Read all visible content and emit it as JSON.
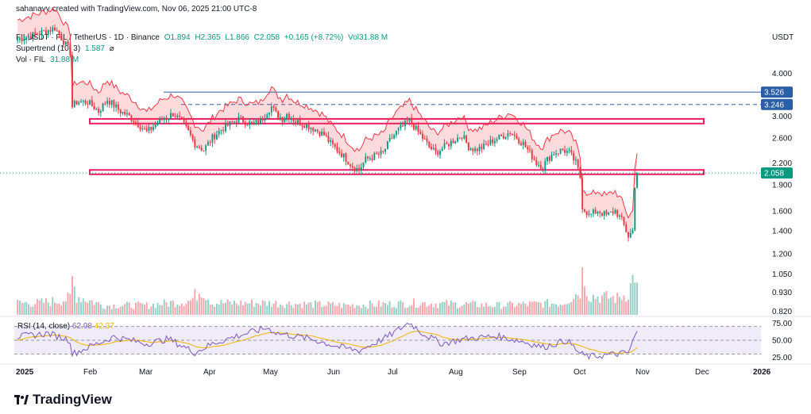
{
  "credit": "sahanavv created with TradingView.com, Nov 06, 2025 21:00 UTC-8",
  "legend": {
    "symbol": "FILUSDT · FIL / TetherUS · 1D · Binance",
    "open": "O1.894",
    "high": "H2.365",
    "low": "L1.866",
    "close": "C2.058",
    "change": "+0.165 (+8.72%)",
    "vol": "Vol31.88 M",
    "supertrend_label": "Supertrend (10, 3)",
    "supertrend_value": "1.587",
    "vol_label": "Vol · FIL",
    "vol_value": "31.88 M"
  },
  "rsi_legend": {
    "label": "RSI (14, close)",
    "value1": "62.98",
    "value2": "42.37"
  },
  "currency": "USDT",
  "brand": "TradingView",
  "colors": {
    "up": "#089981",
    "down": "#f23645",
    "rsi": "#7e57c2",
    "rsi_ma": "#f0b400",
    "box": "#e91e63",
    "level": "#2a5ea8"
  },
  "chart_data": {
    "type": "candlestick",
    "y_scale": "log",
    "x_labels": [
      "2025",
      "Feb",
      "Mar",
      "Apr",
      "May",
      "Jun",
      "Jul",
      "Aug",
      "Sep",
      "Oct",
      "Nov",
      "Dec",
      "2026"
    ],
    "y_ticks": [
      "4.000",
      "3.000",
      "2.600",
      "2.200",
      "1.900",
      "1.600",
      "1.400",
      "1.200",
      "1.050",
      "0.930",
      "0.820"
    ],
    "price_labels": [
      {
        "label": "3.526",
        "value": 3.526,
        "style": "solid"
      },
      {
        "label": "3.246",
        "value": 3.246,
        "style": "dashed"
      },
      {
        "label": "2.058",
        "value": 2.058,
        "style": "dotted"
      }
    ],
    "zones": [
      {
        "low": 2.86,
        "high": 2.95,
        "color": "#e91e63"
      },
      {
        "low": 2.04,
        "high": 2.1,
        "color": "#e91e63"
      }
    ],
    "rsi": {
      "ticks": [
        "75.00",
        "50.00",
        "25.00"
      ],
      "upper": 70,
      "middle": 50,
      "lower": 30
    },
    "close_path": [
      [
        1,
        5.0
      ],
      [
        10,
        5.2
      ],
      [
        18,
        5.4
      ],
      [
        25,
        4.6
      ],
      [
        26,
        3.2
      ],
      [
        28,
        3.3
      ],
      [
        33,
        3.3
      ],
      [
        38,
        3.1
      ],
      [
        42,
        3.35
      ],
      [
        48,
        3.1
      ],
      [
        52,
        3.0
      ],
      [
        56,
        2.85
      ],
      [
        60,
        2.7
      ],
      [
        63,
        2.8
      ],
      [
        67,
        2.95
      ],
      [
        70,
        3.0
      ],
      [
        72,
        3.05
      ],
      [
        76,
        2.9
      ],
      [
        82,
        2.5
      ],
      [
        86,
        2.4
      ],
      [
        90,
        2.6
      ],
      [
        94,
        2.75
      ],
      [
        98,
        2.85
      ],
      [
        102,
        2.95
      ],
      [
        108,
        2.85
      ],
      [
        112,
        2.9
      ],
      [
        115,
        3.1
      ],
      [
        117,
        3.2
      ],
      [
        119,
        3.05
      ],
      [
        122,
        2.95
      ],
      [
        124,
        3.05
      ],
      [
        128,
        2.9
      ],
      [
        132,
        2.85
      ],
      [
        137,
        2.75
      ],
      [
        141,
        2.65
      ],
      [
        144,
        2.5
      ],
      [
        147,
        2.4
      ],
      [
        150,
        2.3
      ],
      [
        154,
        2.15
      ],
      [
        157,
        2.1
      ],
      [
        160,
        2.25
      ],
      [
        164,
        2.3
      ],
      [
        168,
        2.35
      ],
      [
        171,
        2.55
      ],
      [
        174,
        2.7
      ],
      [
        177,
        2.8
      ],
      [
        180,
        2.92
      ],
      [
        183,
        2.75
      ],
      [
        186,
        2.6
      ],
      [
        189,
        2.45
      ],
      [
        192,
        2.35
      ],
      [
        196,
        2.45
      ],
      [
        200,
        2.55
      ],
      [
        204,
        2.65
      ],
      [
        207,
        2.45
      ],
      [
        210,
        2.4
      ],
      [
        214,
        2.45
      ],
      [
        218,
        2.55
      ],
      [
        222,
        2.62
      ],
      [
        226,
        2.7
      ],
      [
        229,
        2.6
      ],
      [
        232,
        2.5
      ],
      [
        235,
        2.35
      ],
      [
        238,
        2.2
      ],
      [
        241,
        2.15
      ],
      [
        243,
        2.25
      ],
      [
        246,
        2.35
      ],
      [
        250,
        2.4
      ],
      [
        253,
        2.35
      ],
      [
        256,
        2.2
      ],
      [
        258,
        2.0
      ],
      [
        259,
        1.65
      ],
      [
        262,
        1.55
      ],
      [
        266,
        1.6
      ],
      [
        270,
        1.55
      ],
      [
        274,
        1.6
      ],
      [
        277,
        1.5
      ],
      [
        280,
        1.35
      ],
      [
        282,
        1.4
      ],
      [
        283,
        1.9
      ],
      [
        284,
        2.058
      ]
    ],
    "volume_path": [
      [
        1,
        0.25
      ],
      [
        10,
        0.25
      ],
      [
        20,
        0.3
      ],
      [
        25,
        0.35
      ],
      [
        26,
        0.75
      ],
      [
        28,
        0.4
      ],
      [
        40,
        0.2
      ],
      [
        60,
        0.2
      ],
      [
        80,
        0.3
      ],
      [
        85,
        0.55
      ],
      [
        90,
        0.25
      ],
      [
        115,
        0.25
      ],
      [
        150,
        0.2
      ],
      [
        185,
        0.25
      ],
      [
        220,
        0.2
      ],
      [
        250,
        0.25
      ],
      [
        258,
        0.5
      ],
      [
        259,
        1.0
      ],
      [
        262,
        0.4
      ],
      [
        275,
        0.35
      ],
      [
        280,
        0.45
      ],
      [
        283,
        0.9
      ],
      [
        284,
        0.55
      ]
    ],
    "rsi_path": [
      [
        1,
        55
      ],
      [
        15,
        60
      ],
      [
        25,
        50
      ],
      [
        26,
        30
      ],
      [
        35,
        42
      ],
      [
        45,
        55
      ],
      [
        60,
        45
      ],
      [
        70,
        52
      ],
      [
        82,
        32
      ],
      [
        90,
        45
      ],
      [
        100,
        55
      ],
      [
        115,
        68
      ],
      [
        120,
        60
      ],
      [
        135,
        52
      ],
      [
        148,
        40
      ],
      [
        157,
        35
      ],
      [
        170,
        55
      ],
      [
        180,
        76
      ],
      [
        186,
        60
      ],
      [
        195,
        45
      ],
      [
        205,
        52
      ],
      [
        220,
        56
      ],
      [
        232,
        48
      ],
      [
        241,
        40
      ],
      [
        252,
        50
      ],
      [
        258,
        30
      ],
      [
        262,
        26
      ],
      [
        275,
        30
      ],
      [
        280,
        32
      ],
      [
        283,
        55
      ],
      [
        284,
        63
      ]
    ]
  }
}
